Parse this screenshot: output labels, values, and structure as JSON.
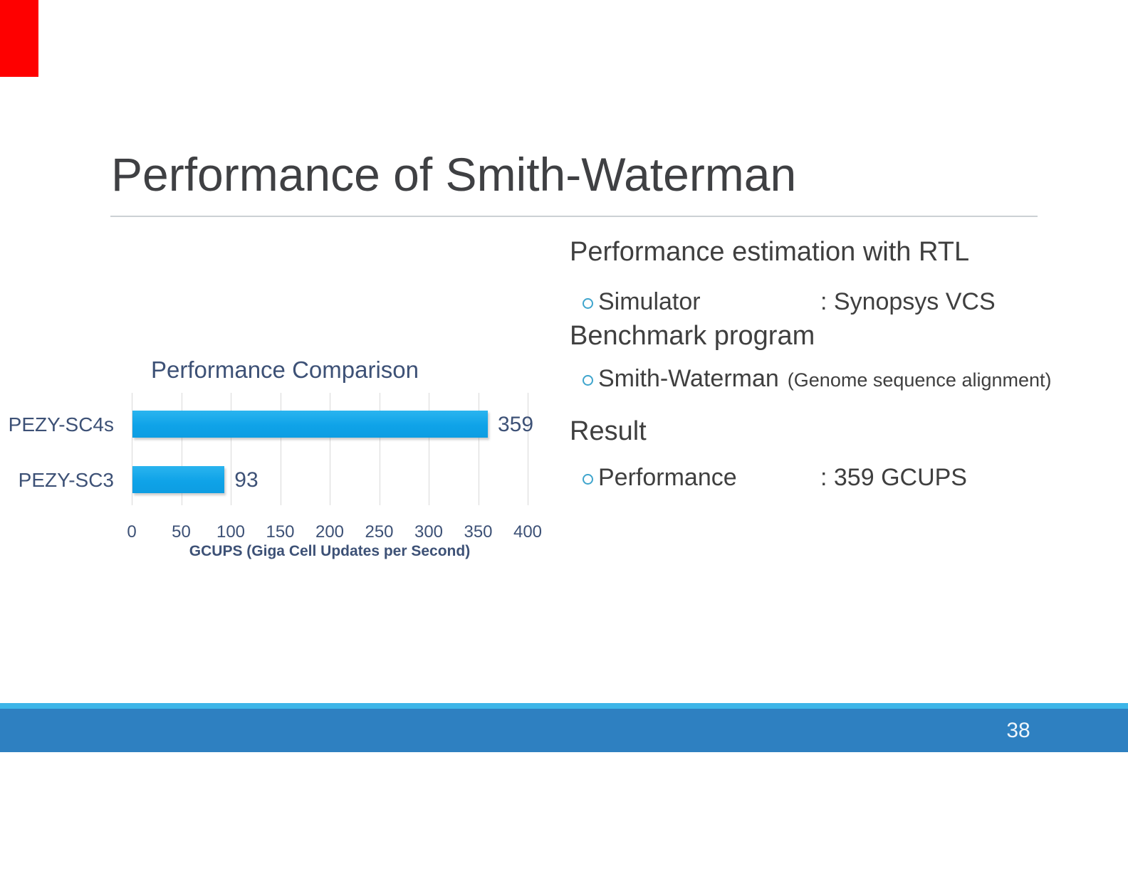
{
  "slide": {
    "title": "Performance of Smith-Waterman",
    "page_number": "38"
  },
  "colors": {
    "corner_accent_red": "#fe0000",
    "footer_strip_blue": "#3db5e8",
    "footer_bar_blue": "#2e80c1",
    "chart_bar_blue": "#10a4e8",
    "chart_text_navy": "#3d5176",
    "body_text_gray": "#3f3f3f"
  },
  "content": {
    "sections": [
      {
        "heading": "Performance estimation with RTL",
        "item_label": "Simulator",
        "item_value": ": Synopsys VCS"
      },
      {
        "heading": "Benchmark program",
        "item_label": "Smith-Waterman",
        "item_note": "(Genome sequence alignment)"
      },
      {
        "heading": "Result",
        "item_label": "Performance",
        "item_value": ": 359 GCUPS"
      }
    ]
  },
  "chart_data": {
    "type": "bar",
    "orientation": "horizontal",
    "title": "Performance Comparison",
    "categories": [
      "PEZY-SC4s",
      "PEZY-SC3"
    ],
    "values": [
      359,
      93
    ],
    "xlabel": "GCUPS (Giga Cell Updates per Second)",
    "xlim": [
      0,
      400
    ],
    "xticks": [
      0,
      50,
      100,
      150,
      200,
      250,
      300,
      350,
      400
    ],
    "grid": true,
    "legend": false
  }
}
